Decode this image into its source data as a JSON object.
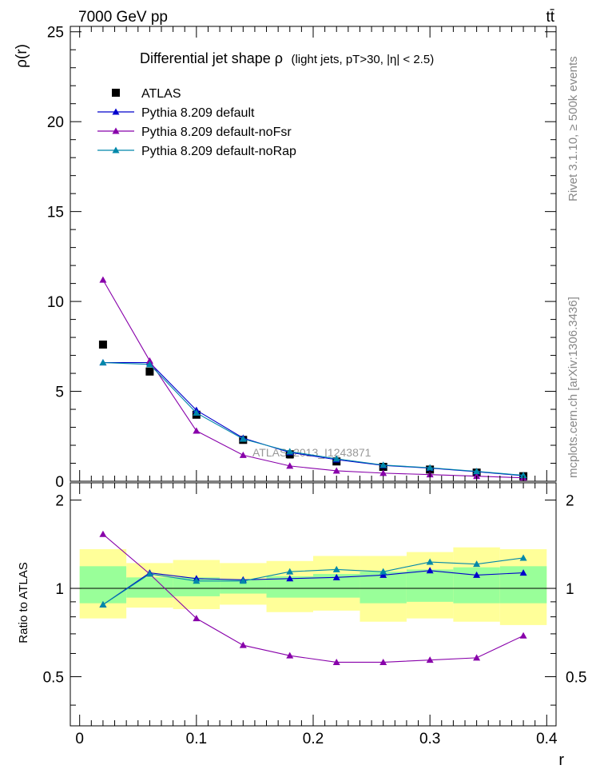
{
  "header": {
    "energy_label": "7000 GeV pp",
    "process_label": "tt̄",
    "rivet_label": "Rivet 3.1.10, ≥ 500k events",
    "mcplots_label": "mcplots.cern.ch [arXiv:1306.3436]"
  },
  "colors": {
    "atlas": "#000000",
    "default": "#0000cc",
    "noFsr": "#8800aa",
    "noRap": "#0088aa",
    "band_inner": "#99ff99",
    "band_outer": "#ffff99"
  },
  "chart_data": [
    {
      "id": "main",
      "type": "scatter",
      "title": "Differential jet shape  ρ",
      "title_detail": "(light jets, pT>30, |η| < 2.5)",
      "ylabel": "ρ(r)",
      "xlabel": "",
      "xlim": [
        -0.008,
        0.408
      ],
      "ylim": [
        0,
        25.3
      ],
      "yticks": [
        0,
        5,
        10,
        15,
        20,
        25
      ],
      "ytick_labels": [
        "0",
        "5",
        "10",
        "15",
        "20",
        "25"
      ],
      "watermark": "ATLAS_2013_I1243871",
      "legend_position": "top-left",
      "x": [
        0.02,
        0.06,
        0.1,
        0.14,
        0.18,
        0.22,
        0.26,
        0.3,
        0.34,
        0.38
      ],
      "series": [
        {
          "name": "ATLAS",
          "marker": "square",
          "color": "#000000",
          "values": [
            7.6,
            6.1,
            3.7,
            2.3,
            1.5,
            1.1,
            0.8,
            0.65,
            0.48,
            0.28
          ]
        },
        {
          "name": "Pythia 8.209 default",
          "marker": "triangle",
          "color": "#0000cc",
          "values": [
            6.6,
            6.6,
            3.95,
            2.4,
            1.6,
            1.2,
            0.88,
            0.73,
            0.53,
            0.31
          ]
        },
        {
          "name": "Pythia 8.209 default-noFsr",
          "marker": "triangle",
          "color": "#8800aa",
          "values": [
            11.2,
            6.7,
            2.8,
            1.45,
            0.85,
            0.58,
            0.45,
            0.37,
            0.28,
            0.19
          ]
        },
        {
          "name": "Pythia 8.209 default-noRap",
          "marker": "triangle",
          "color": "#0088aa",
          "values": [
            6.6,
            6.5,
            3.8,
            2.35,
            1.65,
            1.25,
            0.9,
            0.75,
            0.55,
            0.33
          ]
        }
      ]
    },
    {
      "id": "ratio",
      "type": "line",
      "title": "",
      "ylabel": "Ratio to ATLAS",
      "xlabel": "r",
      "xlim": [
        -0.008,
        0.408
      ],
      "ylim": [
        0.34,
        2.29
      ],
      "yticks": [
        0.5,
        1,
        2
      ],
      "ytick_labels": [
        "0.5",
        "1",
        "2"
      ],
      "xticks": [
        0,
        0.1,
        0.2,
        0.3,
        0.4
      ],
      "xtick_labels": [
        "0",
        "0.1",
        "0.2",
        "0.3",
        "0.4"
      ],
      "reference_line": 1,
      "bins": [
        [
          0.0,
          0.04
        ],
        [
          0.04,
          0.08
        ],
        [
          0.08,
          0.12
        ],
        [
          0.12,
          0.16
        ],
        [
          0.16,
          0.2
        ],
        [
          0.2,
          0.24
        ],
        [
          0.24,
          0.28
        ],
        [
          0.28,
          0.32
        ],
        [
          0.32,
          0.36
        ],
        [
          0.36,
          0.4
        ]
      ],
      "band_inner": [
        [
          0.89,
          1.19
        ],
        [
          0.93,
          1.09
        ],
        [
          0.94,
          1.09
        ],
        [
          0.96,
          1.07
        ],
        [
          0.93,
          1.1
        ],
        [
          0.93,
          1.12
        ],
        [
          0.89,
          1.14
        ],
        [
          0.9,
          1.16
        ],
        [
          0.89,
          1.18
        ],
        [
          0.89,
          1.19
        ]
      ],
      "band_outer": [
        [
          0.79,
          1.36
        ],
        [
          0.86,
          1.22
        ],
        [
          0.85,
          1.25
        ],
        [
          0.88,
          1.22
        ],
        [
          0.83,
          1.24
        ],
        [
          0.84,
          1.29
        ],
        [
          0.77,
          1.29
        ],
        [
          0.79,
          1.33
        ],
        [
          0.77,
          1.38
        ],
        [
          0.75,
          1.36
        ]
      ],
      "x": [
        0.02,
        0.06,
        0.1,
        0.14,
        0.18,
        0.22,
        0.26,
        0.3,
        0.34,
        0.38
      ],
      "series": [
        {
          "name": "Pythia 8.209 default",
          "color": "#0000cc",
          "values": [
            0.88,
            1.13,
            1.08,
            1.07,
            1.08,
            1.09,
            1.11,
            1.15,
            1.11,
            1.13
          ]
        },
        {
          "name": "Pythia 8.209 default-noFsr",
          "color": "#8800aa",
          "values": [
            1.53,
            1.12,
            0.79,
            0.64,
            0.59,
            0.56,
            0.56,
            0.57,
            0.58,
            0.69
          ]
        },
        {
          "name": "Pythia 8.209 default-noRap",
          "color": "#0088aa",
          "values": [
            0.88,
            1.12,
            1.06,
            1.06,
            1.14,
            1.16,
            1.14,
            1.23,
            1.21,
            1.27
          ]
        }
      ]
    }
  ]
}
